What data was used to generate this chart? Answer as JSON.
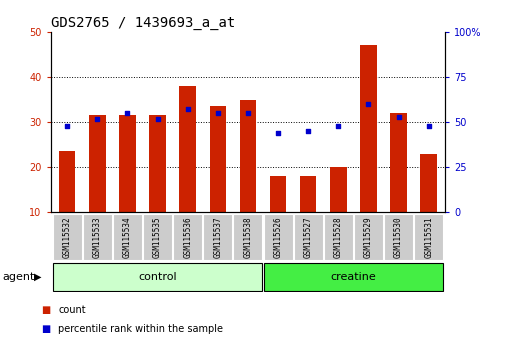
{
  "title": "GDS2765 / 1439693_a_at",
  "samples": [
    "GSM115532",
    "GSM115533",
    "GSM115534",
    "GSM115535",
    "GSM115536",
    "GSM115537",
    "GSM115538",
    "GSM115526",
    "GSM115527",
    "GSM115528",
    "GSM115529",
    "GSM115530",
    "GSM115531"
  ],
  "counts": [
    23.5,
    31.5,
    31.5,
    31.5,
    38.0,
    33.5,
    35.0,
    18.0,
    18.0,
    20.0,
    47.0,
    32.0,
    23.0
  ],
  "percentile_ranks": [
    48,
    52,
    55,
    52,
    57,
    55,
    55,
    44,
    45,
    48,
    60,
    53,
    48
  ],
  "bar_color": "#cc2200",
  "dot_color": "#0000cc",
  "ylim_left": [
    10,
    50
  ],
  "ylim_right": [
    0,
    100
  ],
  "yticks_left": [
    10,
    20,
    30,
    40,
    50
  ],
  "yticks_right": [
    0,
    25,
    50,
    75,
    100
  ],
  "grid_ticks": [
    20,
    30,
    40
  ],
  "groups": [
    {
      "label": "control",
      "indices": [
        0,
        1,
        2,
        3,
        4,
        5,
        6
      ],
      "color": "#ccffcc"
    },
    {
      "label": "creatine",
      "indices": [
        7,
        8,
        9,
        10,
        11,
        12
      ],
      "color": "#44ee44"
    }
  ],
  "group_label": "agent",
  "bar_width": 0.55,
  "background_color": "#ffffff",
  "tick_area_color": "#cccccc",
  "title_fontsize": 10,
  "tick_fontsize": 7,
  "label_fontsize": 8,
  "sample_fontsize": 5.5,
  "legend_items": [
    {
      "label": "count",
      "color": "#cc2200"
    },
    {
      "label": "percentile rank within the sample",
      "color": "#0000cc"
    }
  ]
}
